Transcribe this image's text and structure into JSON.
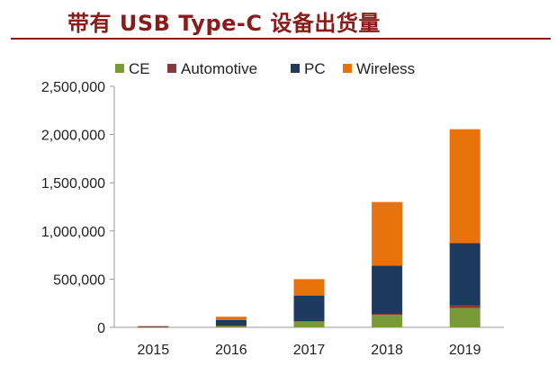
{
  "chart_data": {
    "type": "bar",
    "stacked": true,
    "title": "带有 USB Type-C 设备出货量",
    "xlabel": "",
    "ylabel": "",
    "categories": [
      "2015",
      "2016",
      "2017",
      "2018",
      "2019"
    ],
    "series": [
      {
        "name": "CE",
        "color": "#7a9a3a",
        "values": [
          3000,
          15000,
          60000,
          130000,
          200000
        ]
      },
      {
        "name": "Automotive",
        "color": "#8b3a3a",
        "values": [
          500,
          2000,
          5000,
          10000,
          25000
        ]
      },
      {
        "name": "PC",
        "color": "#1f3a5f",
        "values": [
          7000,
          60000,
          265000,
          500000,
          650000
        ]
      },
      {
        "name": "Wireless",
        "color": "#e8720c",
        "values": [
          2000,
          33000,
          170000,
          660000,
          1180000
        ]
      }
    ],
    "ylim": [
      0,
      2500000
    ],
    "yticks": [
      0,
      500000,
      1000000,
      1500000,
      2000000,
      2500000
    ],
    "ytick_labels": [
      "0",
      "500,000",
      "1,000,000",
      "1,500,000",
      "2,000,000",
      "2,500,000"
    ],
    "grid": false,
    "legend_position": "top"
  }
}
